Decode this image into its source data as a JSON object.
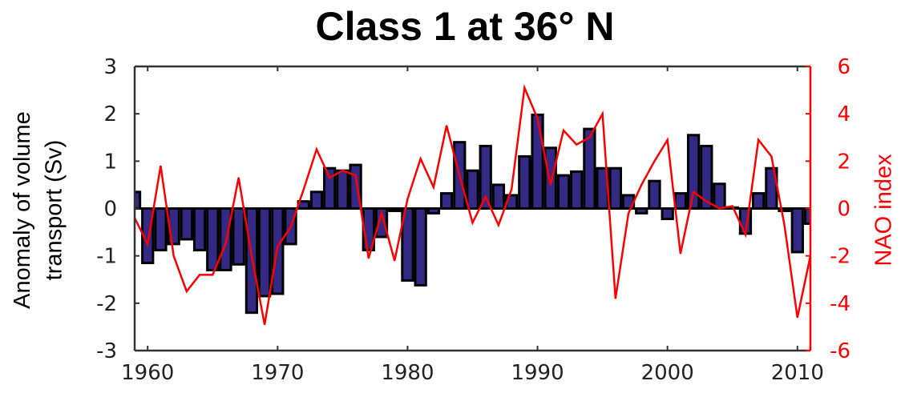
{
  "chart_data": {
    "type": "bar+line",
    "title": "Class 1 at 36° N",
    "xlabel": "",
    "ylabel_left": [
      "Anomaly of volume",
      "transport (Sv)"
    ],
    "ylabel_right": "NAO index",
    "xlim": [
      1959,
      2011
    ],
    "ylim_left": [
      -3,
      3
    ],
    "ylim_right": [
      -6,
      6
    ],
    "x_ticks": [
      1960,
      1970,
      1980,
      1990,
      2000,
      2010
    ],
    "y_ticks_left": [
      3,
      2,
      1,
      0,
      -1,
      -2,
      -3
    ],
    "y_ticks_right": [
      6,
      4,
      2,
      0,
      -2,
      -4,
      -6
    ],
    "grid": false,
    "x": [
      1959,
      1960,
      1961,
      1962,
      1963,
      1964,
      1965,
      1966,
      1967,
      1968,
      1969,
      1970,
      1971,
      1972,
      1973,
      1974,
      1975,
      1976,
      1977,
      1978,
      1979,
      1980,
      1981,
      1982,
      1983,
      1984,
      1985,
      1986,
      1987,
      1988,
      1989,
      1990,
      1991,
      1992,
      1993,
      1994,
      1995,
      1996,
      1997,
      1998,
      1999,
      2000,
      2001,
      2002,
      2003,
      2004,
      2005,
      2006,
      2007,
      2008,
      2009,
      2010,
      2011
    ],
    "series": [
      {
        "name": "Anomaly of volume transport (Sv)",
        "type": "bar",
        "axis": "left",
        "color": "#332a85",
        "values": [
          0.35,
          -1.15,
          -0.88,
          -0.75,
          -0.65,
          -0.88,
          -1.3,
          -1.3,
          -1.18,
          -2.2,
          -1.85,
          -1.8,
          -0.75,
          0.15,
          0.35,
          0.85,
          0.8,
          0.92,
          -0.88,
          -0.6,
          -0.05,
          -1.52,
          -1.62,
          -0.1,
          0.32,
          1.4,
          0.8,
          1.32,
          0.5,
          0.28,
          1.1,
          1.98,
          1.28,
          0.7,
          0.78,
          1.68,
          0.85,
          0.85,
          0.28,
          -0.1,
          0.58,
          -0.22,
          0.32,
          1.55,
          1.32,
          0.52,
          0.02,
          -0.53,
          0.32,
          0.85,
          -0.05,
          -0.92,
          -0.32
        ]
      },
      {
        "name": "NAO index",
        "type": "line",
        "axis": "right",
        "color": "#ff0000",
        "values": [
          -0.4,
          -1.5,
          1.8,
          -2.0,
          -3.5,
          -2.8,
          -2.8,
          -1.5,
          1.3,
          -2.0,
          -4.9,
          -1.6,
          -0.8,
          0.8,
          2.5,
          1.3,
          1.6,
          1.4,
          -2.1,
          -0.2,
          -2.2,
          0.4,
          2.1,
          0.9,
          3.5,
          1.4,
          -0.6,
          0.5,
          -0.7,
          0.8,
          5.1,
          3.8,
          1.0,
          3.3,
          2.7,
          3.0,
          4.0,
          -3.8,
          -0.2,
          1.0,
          2.0,
          2.9,
          -1.9,
          0.7,
          0.3,
          0.0,
          0.1,
          -1.1,
          2.9,
          2.2,
          -0.7,
          -4.6,
          -2.0
        ]
      }
    ]
  }
}
